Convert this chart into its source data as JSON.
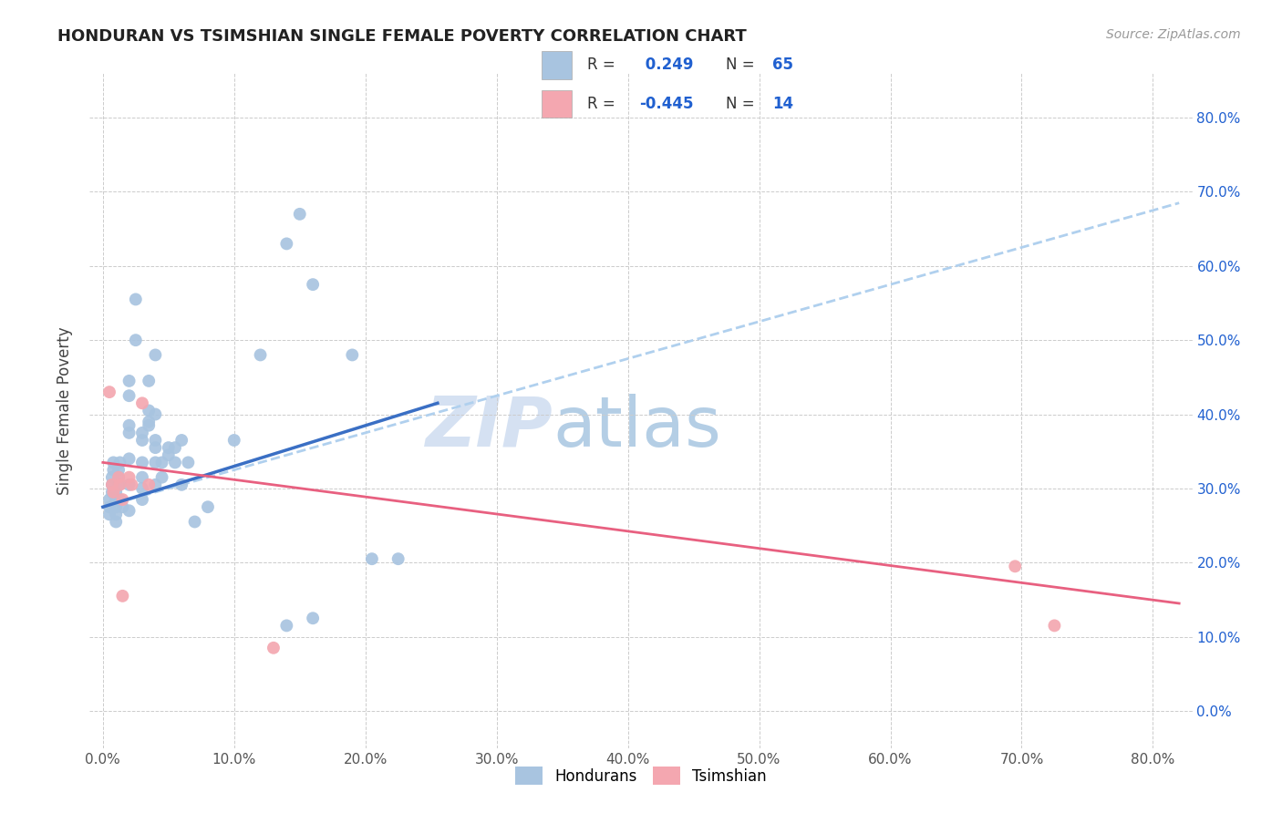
{
  "title": "HONDURAN VS TSIMSHIAN SINGLE FEMALE POVERTY CORRELATION CHART",
  "source": "Source: ZipAtlas.com",
  "ylabel": "Single Female Poverty",
  "x_ticks": [
    0.0,
    0.1,
    0.2,
    0.3,
    0.4,
    0.5,
    0.6,
    0.7,
    0.8
  ],
  "y_ticks": [
    0.0,
    0.1,
    0.2,
    0.3,
    0.4,
    0.5,
    0.6,
    0.7,
    0.8
  ],
  "xlim": [
    -0.01,
    0.83
  ],
  "ylim": [
    -0.05,
    0.86
  ],
  "honduran_color": "#a8c4e0",
  "tsimshian_color": "#f4a7b0",
  "honduran_line_color": "#3a6fc4",
  "tsimshian_line_color": "#e86080",
  "trend_line_dashed_color": "#b0d0ee",
  "r_color": "#2060d0",
  "watermark": "ZIPatlas",
  "watermark_zip_color": "#c8d8ec",
  "watermark_atlas_color": "#8cb4d8",
  "legend_label1": "Hondurans",
  "legend_label2": "Tsimshian",
  "honduran_scatter": [
    [
      0.005,
      0.265
    ],
    [
      0.005,
      0.275
    ],
    [
      0.005,
      0.285
    ],
    [
      0.007,
      0.295
    ],
    [
      0.007,
      0.305
    ],
    [
      0.007,
      0.315
    ],
    [
      0.008,
      0.325
    ],
    [
      0.008,
      0.335
    ],
    [
      0.01,
      0.255
    ],
    [
      0.01,
      0.265
    ],
    [
      0.01,
      0.275
    ],
    [
      0.01,
      0.285
    ],
    [
      0.01,
      0.295
    ],
    [
      0.012,
      0.305
    ],
    [
      0.012,
      0.315
    ],
    [
      0.012,
      0.325
    ],
    [
      0.013,
      0.335
    ],
    [
      0.013,
      0.285
    ],
    [
      0.015,
      0.275
    ],
    [
      0.02,
      0.27
    ],
    [
      0.02,
      0.305
    ],
    [
      0.02,
      0.34
    ],
    [
      0.02,
      0.375
    ],
    [
      0.02,
      0.385
    ],
    [
      0.02,
      0.425
    ],
    [
      0.02,
      0.445
    ],
    [
      0.025,
      0.5
    ],
    [
      0.025,
      0.555
    ],
    [
      0.03,
      0.285
    ],
    [
      0.03,
      0.3
    ],
    [
      0.03,
      0.315
    ],
    [
      0.03,
      0.335
    ],
    [
      0.03,
      0.365
    ],
    [
      0.03,
      0.375
    ],
    [
      0.035,
      0.385
    ],
    [
      0.035,
      0.39
    ],
    [
      0.035,
      0.405
    ],
    [
      0.035,
      0.445
    ],
    [
      0.04,
      0.305
    ],
    [
      0.04,
      0.335
    ],
    [
      0.04,
      0.355
    ],
    [
      0.04,
      0.365
    ],
    [
      0.04,
      0.4
    ],
    [
      0.04,
      0.48
    ],
    [
      0.045,
      0.315
    ],
    [
      0.045,
      0.335
    ],
    [
      0.05,
      0.345
    ],
    [
      0.05,
      0.355
    ],
    [
      0.055,
      0.335
    ],
    [
      0.055,
      0.355
    ],
    [
      0.06,
      0.365
    ],
    [
      0.06,
      0.305
    ],
    [
      0.065,
      0.335
    ],
    [
      0.07,
      0.255
    ],
    [
      0.08,
      0.275
    ],
    [
      0.1,
      0.365
    ],
    [
      0.12,
      0.48
    ],
    [
      0.14,
      0.115
    ],
    [
      0.14,
      0.63
    ],
    [
      0.15,
      0.67
    ],
    [
      0.16,
      0.575
    ],
    [
      0.19,
      0.48
    ],
    [
      0.205,
      0.205
    ],
    [
      0.225,
      0.205
    ],
    [
      0.16,
      0.125
    ]
  ],
  "tsimshian_scatter": [
    [
      0.005,
      0.43
    ],
    [
      0.007,
      0.305
    ],
    [
      0.008,
      0.295
    ],
    [
      0.012,
      0.315
    ],
    [
      0.013,
      0.305
    ],
    [
      0.015,
      0.285
    ],
    [
      0.015,
      0.155
    ],
    [
      0.02,
      0.315
    ],
    [
      0.022,
      0.305
    ],
    [
      0.03,
      0.415
    ],
    [
      0.035,
      0.305
    ],
    [
      0.13,
      0.085
    ],
    [
      0.695,
      0.195
    ],
    [
      0.725,
      0.115
    ]
  ],
  "honduran_trendline": [
    [
      0.0,
      0.275
    ],
    [
      0.255,
      0.415
    ]
  ],
  "honduran_trendline_dashed": [
    [
      0.255,
      0.415
    ],
    [
      0.82,
      0.685
    ]
  ],
  "tsimshian_trendline": [
    [
      0.0,
      0.335
    ],
    [
      0.82,
      0.145
    ]
  ],
  "dashed_full_trendline": [
    [
      0.0,
      0.275
    ],
    [
      0.82,
      0.685
    ]
  ]
}
